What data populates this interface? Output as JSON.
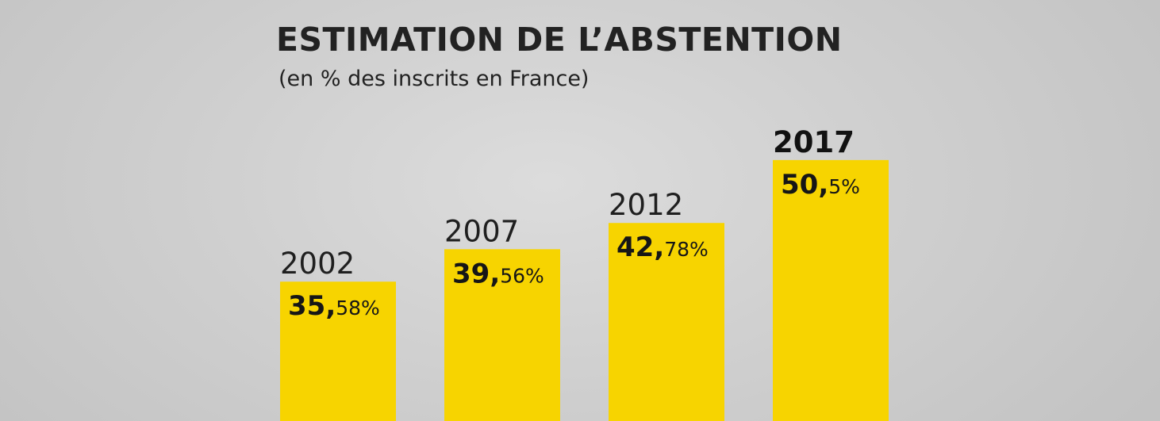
{
  "colors": {
    "bar": "#f7d400",
    "text": "#222222"
  },
  "chart_data": {
    "type": "bar",
    "title": "ESTIMATION DE L’ABSTENTION",
    "subtitle": "(en % des inscrits en France)",
    "xlabel": "",
    "ylabel": "",
    "unit": "%",
    "grid": false,
    "categories": [
      "2002",
      "2007",
      "2012",
      "2017"
    ],
    "values": [
      35.58,
      39.56,
      42.78,
      50.5
    ],
    "value_labels": [
      {
        "int": "35,",
        "dec": "58%"
      },
      {
        "int": "39,",
        "dec": "56%"
      },
      {
        "int": "42,",
        "dec": "78%"
      },
      {
        "int": "50,",
        "dec": "5%"
      }
    ],
    "highlight": "2017"
  }
}
